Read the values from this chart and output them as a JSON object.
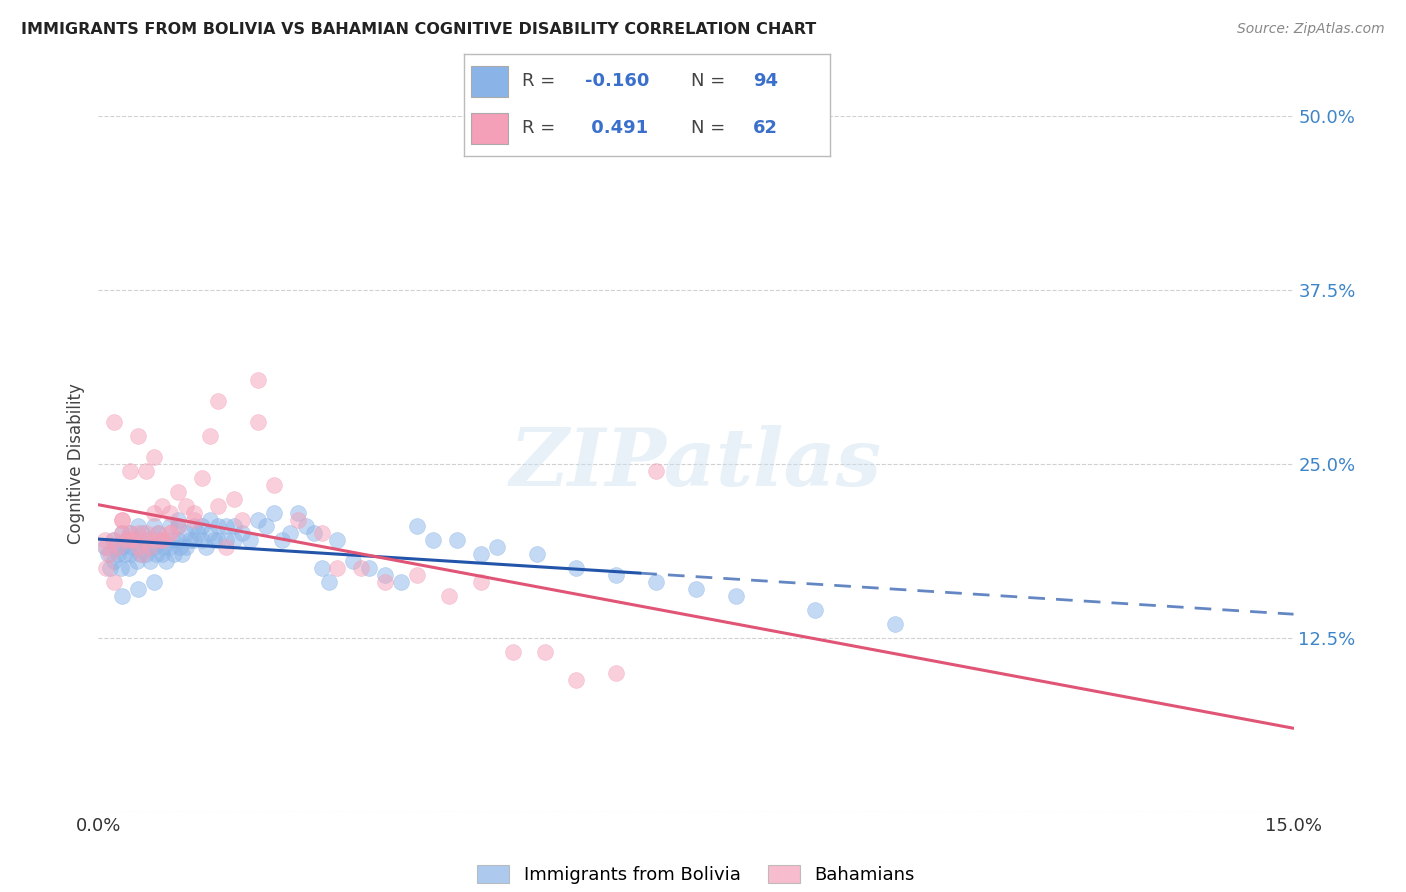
{
  "title": "IMMIGRANTS FROM BOLIVIA VS BAHAMIAN COGNITIVE DISABILITY CORRELATION CHART",
  "source": "Source: ZipAtlas.com",
  "ylabel": "Cognitive Disability",
  "xlim": [
    0.0,
    0.15
  ],
  "ylim": [
    0.0,
    0.5
  ],
  "y_ticks": [
    0.0,
    0.125,
    0.25,
    0.375,
    0.5
  ],
  "y_tick_labels": [
    "",
    "12.5%",
    "25.0%",
    "37.5%",
    "50.0%"
  ],
  "watermark": "ZIPatlas",
  "color_blue": "#8ab4e8",
  "color_pink": "#f4a0b8",
  "color_blue_line": "#2255aa",
  "color_pink_line": "#e05575",
  "label_bolivia": "Immigrants from Bolivia",
  "label_bahamians": "Bahamians",
  "blue_x": [
    0.0008,
    0.0012,
    0.0015,
    0.0018,
    0.002,
    0.0022,
    0.0025,
    0.0028,
    0.003,
    0.003,
    0.0032,
    0.0035,
    0.0038,
    0.004,
    0.004,
    0.0042,
    0.0045,
    0.0048,
    0.005,
    0.005,
    0.0052,
    0.0055,
    0.006,
    0.006,
    0.0062,
    0.0065,
    0.007,
    0.007,
    0.0072,
    0.0075,
    0.008,
    0.008,
    0.0082,
    0.0085,
    0.009,
    0.009,
    0.0092,
    0.0095,
    0.01,
    0.01,
    0.0102,
    0.0105,
    0.011,
    0.011,
    0.0115,
    0.012,
    0.012,
    0.0125,
    0.013,
    0.013,
    0.0135,
    0.014,
    0.014,
    0.0145,
    0.015,
    0.015,
    0.016,
    0.016,
    0.017,
    0.017,
    0.018,
    0.019,
    0.02,
    0.021,
    0.022,
    0.023,
    0.024,
    0.025,
    0.026,
    0.027,
    0.028,
    0.029,
    0.03,
    0.032,
    0.034,
    0.036,
    0.038,
    0.04,
    0.042,
    0.045,
    0.048,
    0.05,
    0.055,
    0.06,
    0.065,
    0.07,
    0.075,
    0.08,
    0.09,
    0.1,
    0.003,
    0.005,
    0.007,
    0.01
  ],
  "blue_y": [
    0.19,
    0.185,
    0.175,
    0.195,
    0.18,
    0.19,
    0.185,
    0.175,
    0.2,
    0.19,
    0.185,
    0.195,
    0.175,
    0.2,
    0.185,
    0.19,
    0.195,
    0.18,
    0.205,
    0.19,
    0.185,
    0.2,
    0.195,
    0.185,
    0.19,
    0.18,
    0.205,
    0.19,
    0.185,
    0.2,
    0.195,
    0.185,
    0.19,
    0.18,
    0.205,
    0.19,
    0.195,
    0.185,
    0.205,
    0.195,
    0.19,
    0.185,
    0.2,
    0.19,
    0.195,
    0.205,
    0.195,
    0.2,
    0.205,
    0.195,
    0.19,
    0.21,
    0.2,
    0.195,
    0.205,
    0.195,
    0.205,
    0.195,
    0.205,
    0.195,
    0.2,
    0.195,
    0.21,
    0.205,
    0.215,
    0.195,
    0.2,
    0.215,
    0.205,
    0.2,
    0.175,
    0.165,
    0.195,
    0.18,
    0.175,
    0.17,
    0.165,
    0.205,
    0.195,
    0.195,
    0.185,
    0.19,
    0.185,
    0.175,
    0.17,
    0.165,
    0.16,
    0.155,
    0.145,
    0.135,
    0.155,
    0.16,
    0.165,
    0.21
  ],
  "pink_x": [
    0.0008,
    0.001,
    0.0015,
    0.002,
    0.002,
    0.0025,
    0.003,
    0.003,
    0.0035,
    0.004,
    0.004,
    0.0045,
    0.005,
    0.005,
    0.0055,
    0.006,
    0.006,
    0.0065,
    0.007,
    0.007,
    0.0075,
    0.008,
    0.008,
    0.009,
    0.009,
    0.01,
    0.011,
    0.012,
    0.013,
    0.014,
    0.015,
    0.016,
    0.017,
    0.018,
    0.02,
    0.022,
    0.025,
    0.028,
    0.03,
    0.033,
    0.036,
    0.04,
    0.044,
    0.048,
    0.052,
    0.056,
    0.06,
    0.065,
    0.07,
    0.001,
    0.002,
    0.003,
    0.004,
    0.005,
    0.006,
    0.007,
    0.008,
    0.009,
    0.01,
    0.012,
    0.015,
    0.02
  ],
  "pink_y": [
    0.195,
    0.19,
    0.185,
    0.195,
    0.28,
    0.19,
    0.2,
    0.21,
    0.195,
    0.2,
    0.245,
    0.195,
    0.19,
    0.27,
    0.185,
    0.195,
    0.245,
    0.19,
    0.195,
    0.255,
    0.2,
    0.195,
    0.22,
    0.2,
    0.215,
    0.205,
    0.22,
    0.21,
    0.24,
    0.27,
    0.22,
    0.19,
    0.225,
    0.21,
    0.28,
    0.235,
    0.21,
    0.2,
    0.175,
    0.175,
    0.165,
    0.17,
    0.155,
    0.165,
    0.115,
    0.115,
    0.095,
    0.1,
    0.245,
    0.175,
    0.165,
    0.21,
    0.195,
    0.2,
    0.2,
    0.215,
    0.195,
    0.2,
    0.23,
    0.215,
    0.295,
    0.31
  ]
}
